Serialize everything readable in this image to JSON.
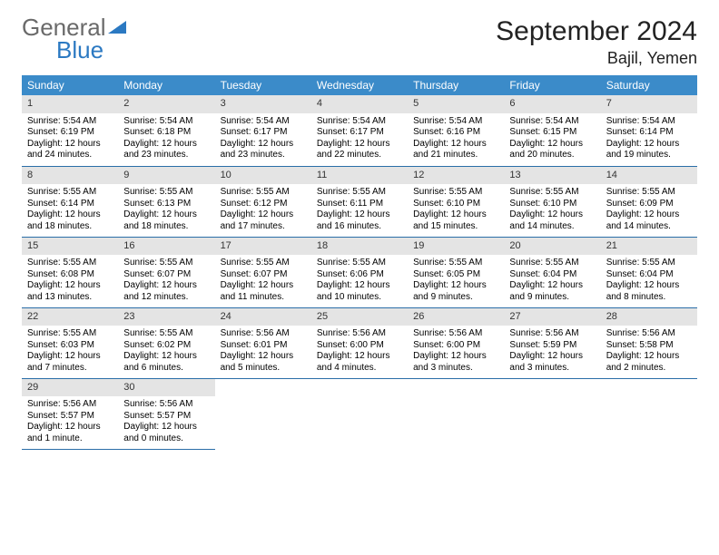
{
  "brand": {
    "word1": "General",
    "word2": "Blue"
  },
  "title": "September 2024",
  "location": "Bajil, Yemen",
  "colors": {
    "header_bg": "#3b8bc9",
    "header_fg": "#ffffff",
    "daynum_bg": "#e4e4e4",
    "row_divider": "#2a6ea8",
    "logo_blue": "#2b79c2",
    "logo_gray": "#6a6a6a"
  },
  "dow": [
    "Sunday",
    "Monday",
    "Tuesday",
    "Wednesday",
    "Thursday",
    "Friday",
    "Saturday"
  ],
  "weeks": [
    [
      {
        "n": "1",
        "sr": "Sunrise: 5:54 AM",
        "ss": "Sunset: 6:19 PM",
        "d1": "Daylight: 12 hours",
        "d2": "and 24 minutes."
      },
      {
        "n": "2",
        "sr": "Sunrise: 5:54 AM",
        "ss": "Sunset: 6:18 PM",
        "d1": "Daylight: 12 hours",
        "d2": "and 23 minutes."
      },
      {
        "n": "3",
        "sr": "Sunrise: 5:54 AM",
        "ss": "Sunset: 6:17 PM",
        "d1": "Daylight: 12 hours",
        "d2": "and 23 minutes."
      },
      {
        "n": "4",
        "sr": "Sunrise: 5:54 AM",
        "ss": "Sunset: 6:17 PM",
        "d1": "Daylight: 12 hours",
        "d2": "and 22 minutes."
      },
      {
        "n": "5",
        "sr": "Sunrise: 5:54 AM",
        "ss": "Sunset: 6:16 PM",
        "d1": "Daylight: 12 hours",
        "d2": "and 21 minutes."
      },
      {
        "n": "6",
        "sr": "Sunrise: 5:54 AM",
        "ss": "Sunset: 6:15 PM",
        "d1": "Daylight: 12 hours",
        "d2": "and 20 minutes."
      },
      {
        "n": "7",
        "sr": "Sunrise: 5:54 AM",
        "ss": "Sunset: 6:14 PM",
        "d1": "Daylight: 12 hours",
        "d2": "and 19 minutes."
      }
    ],
    [
      {
        "n": "8",
        "sr": "Sunrise: 5:55 AM",
        "ss": "Sunset: 6:14 PM",
        "d1": "Daylight: 12 hours",
        "d2": "and 18 minutes."
      },
      {
        "n": "9",
        "sr": "Sunrise: 5:55 AM",
        "ss": "Sunset: 6:13 PM",
        "d1": "Daylight: 12 hours",
        "d2": "and 18 minutes."
      },
      {
        "n": "10",
        "sr": "Sunrise: 5:55 AM",
        "ss": "Sunset: 6:12 PM",
        "d1": "Daylight: 12 hours",
        "d2": "and 17 minutes."
      },
      {
        "n": "11",
        "sr": "Sunrise: 5:55 AM",
        "ss": "Sunset: 6:11 PM",
        "d1": "Daylight: 12 hours",
        "d2": "and 16 minutes."
      },
      {
        "n": "12",
        "sr": "Sunrise: 5:55 AM",
        "ss": "Sunset: 6:10 PM",
        "d1": "Daylight: 12 hours",
        "d2": "and 15 minutes."
      },
      {
        "n": "13",
        "sr": "Sunrise: 5:55 AM",
        "ss": "Sunset: 6:10 PM",
        "d1": "Daylight: 12 hours",
        "d2": "and 14 minutes."
      },
      {
        "n": "14",
        "sr": "Sunrise: 5:55 AM",
        "ss": "Sunset: 6:09 PM",
        "d1": "Daylight: 12 hours",
        "d2": "and 14 minutes."
      }
    ],
    [
      {
        "n": "15",
        "sr": "Sunrise: 5:55 AM",
        "ss": "Sunset: 6:08 PM",
        "d1": "Daylight: 12 hours",
        "d2": "and 13 minutes."
      },
      {
        "n": "16",
        "sr": "Sunrise: 5:55 AM",
        "ss": "Sunset: 6:07 PM",
        "d1": "Daylight: 12 hours",
        "d2": "and 12 minutes."
      },
      {
        "n": "17",
        "sr": "Sunrise: 5:55 AM",
        "ss": "Sunset: 6:07 PM",
        "d1": "Daylight: 12 hours",
        "d2": "and 11 minutes."
      },
      {
        "n": "18",
        "sr": "Sunrise: 5:55 AM",
        "ss": "Sunset: 6:06 PM",
        "d1": "Daylight: 12 hours",
        "d2": "and 10 minutes."
      },
      {
        "n": "19",
        "sr": "Sunrise: 5:55 AM",
        "ss": "Sunset: 6:05 PM",
        "d1": "Daylight: 12 hours",
        "d2": "and 9 minutes."
      },
      {
        "n": "20",
        "sr": "Sunrise: 5:55 AM",
        "ss": "Sunset: 6:04 PM",
        "d1": "Daylight: 12 hours",
        "d2": "and 9 minutes."
      },
      {
        "n": "21",
        "sr": "Sunrise: 5:55 AM",
        "ss": "Sunset: 6:04 PM",
        "d1": "Daylight: 12 hours",
        "d2": "and 8 minutes."
      }
    ],
    [
      {
        "n": "22",
        "sr": "Sunrise: 5:55 AM",
        "ss": "Sunset: 6:03 PM",
        "d1": "Daylight: 12 hours",
        "d2": "and 7 minutes."
      },
      {
        "n": "23",
        "sr": "Sunrise: 5:55 AM",
        "ss": "Sunset: 6:02 PM",
        "d1": "Daylight: 12 hours",
        "d2": "and 6 minutes."
      },
      {
        "n": "24",
        "sr": "Sunrise: 5:56 AM",
        "ss": "Sunset: 6:01 PM",
        "d1": "Daylight: 12 hours",
        "d2": "and 5 minutes."
      },
      {
        "n": "25",
        "sr": "Sunrise: 5:56 AM",
        "ss": "Sunset: 6:00 PM",
        "d1": "Daylight: 12 hours",
        "d2": "and 4 minutes."
      },
      {
        "n": "26",
        "sr": "Sunrise: 5:56 AM",
        "ss": "Sunset: 6:00 PM",
        "d1": "Daylight: 12 hours",
        "d2": "and 3 minutes."
      },
      {
        "n": "27",
        "sr": "Sunrise: 5:56 AM",
        "ss": "Sunset: 5:59 PM",
        "d1": "Daylight: 12 hours",
        "d2": "and 3 minutes."
      },
      {
        "n": "28",
        "sr": "Sunrise: 5:56 AM",
        "ss": "Sunset: 5:58 PM",
        "d1": "Daylight: 12 hours",
        "d2": "and 2 minutes."
      }
    ],
    [
      {
        "n": "29",
        "sr": "Sunrise: 5:56 AM",
        "ss": "Sunset: 5:57 PM",
        "d1": "Daylight: 12 hours",
        "d2": "and 1 minute."
      },
      {
        "n": "30",
        "sr": "Sunrise: 5:56 AM",
        "ss": "Sunset: 5:57 PM",
        "d1": "Daylight: 12 hours",
        "d2": "and 0 minutes."
      },
      null,
      null,
      null,
      null,
      null
    ]
  ]
}
